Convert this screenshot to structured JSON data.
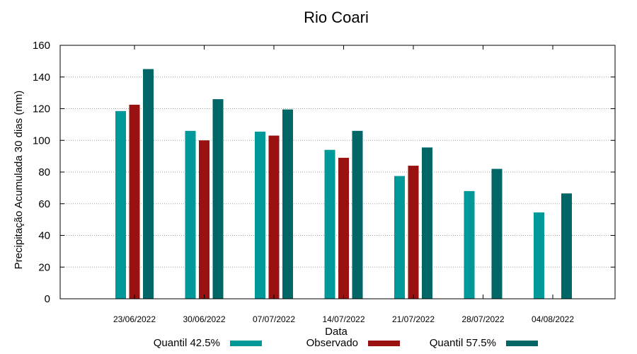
{
  "chart_data": {
    "type": "bar",
    "title": "Rio Coari",
    "xlabel": "Data",
    "ylabel": "Precipitação Acumulada 30 dias (mm)",
    "ylim": [
      0,
      160
    ],
    "yticks": [
      0,
      20,
      40,
      60,
      80,
      100,
      120,
      140,
      160
    ],
    "grid": true,
    "legend_position": "bottom",
    "categories": [
      "23/06/2022",
      "30/06/2022",
      "07/07/2022",
      "14/07/2022",
      "21/07/2022",
      "28/07/2022",
      "04/08/2022"
    ],
    "series": [
      {
        "name": "Quantil 42.5%",
        "color": "#009999",
        "values": [
          118.5,
          106,
          105.5,
          94,
          77.5,
          68,
          54.5
        ]
      },
      {
        "name": "Observado",
        "color": "#991111",
        "values": [
          122.5,
          100,
          103,
          89,
          84,
          null,
          null
        ]
      },
      {
        "name": "Quantil 57.5%",
        "color": "#006666",
        "values": [
          145,
          126,
          119.5,
          106,
          95.5,
          82,
          66.5
        ]
      }
    ]
  }
}
